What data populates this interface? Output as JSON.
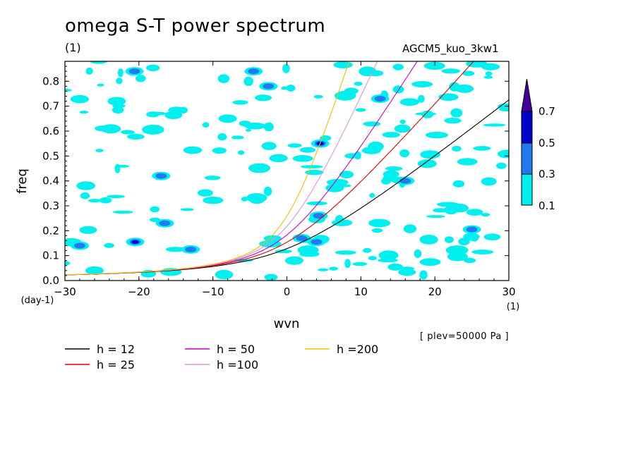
{
  "header": {
    "title": "omega S-T power spectrum",
    "units": "(1)",
    "experiment": "AGCM5_kuo_3kw1",
    "level": "[ plev=50000 Pa ]"
  },
  "chart_data": {
    "type": "heatmap",
    "title": "omega S-T power spectrum",
    "xlabel": "wvn",
    "ylabel": "freq",
    "x_unit": "(1)",
    "y_unit": "(day-1)",
    "xlim": [
      -30,
      30
    ],
    "ylim": [
      0,
      0.88
    ],
    "xticks": [
      -30,
      -20,
      -10,
      0,
      10,
      20,
      30
    ],
    "yticks": [
      0.0,
      0.1,
      0.2,
      0.3,
      0.4,
      0.5,
      0.6,
      0.7,
      0.8
    ],
    "colorbar": {
      "levels": [
        "0.1",
        "0.3",
        "0.5",
        "0.7"
      ],
      "colors": [
        "#00f0f0",
        "#1f7af0",
        "#0000cc",
        "#440099"
      ]
    },
    "dispersion_curves": [
      {
        "label": "h = 12",
        "h": 12,
        "color": "#000000"
      },
      {
        "label": "h = 25",
        "h": 25,
        "color": "#e00000"
      },
      {
        "label": "h = 50",
        "h": 50,
        "color": "#d000c0"
      },
      {
        "label": "h =100",
        "h": 100,
        "color": "#e090e0"
      },
      {
        "label": "h =200",
        "h": 200,
        "color": "#f0c000"
      }
    ],
    "contours": [
      {
        "x": 4.5,
        "y": 0.55,
        "level": 0.5
      },
      {
        "x": 4.3,
        "y": 0.26,
        "level": 0.3
      },
      {
        "x": -20.5,
        "y": 0.155,
        "level": 0.5
      },
      {
        "x": -13,
        "y": 0.125,
        "level": 0.3
      },
      {
        "x": 12.6,
        "y": 0.73,
        "level": 0.3
      },
      {
        "x": 25,
        "y": 0.205,
        "level": 0.3
      },
      {
        "x": -17,
        "y": 0.42,
        "level": 0.3
      },
      {
        "x": -16.5,
        "y": 0.23,
        "level": 0.3
      },
      {
        "x": 2,
        "y": 0.17,
        "level": 0.3
      },
      {
        "x": 4,
        "y": 0.155,
        "level": 0.3
      },
      {
        "x": -2.5,
        "y": 0.78,
        "level": 0.3
      },
      {
        "x": -20.6,
        "y": 0.84,
        "level": 0.3
      },
      {
        "x": -4.5,
        "y": 0.84,
        "level": 0.3
      },
      {
        "x": 16,
        "y": 0.4,
        "level": 0.3
      },
      {
        "x": -28,
        "y": 0.14,
        "level": 0.3
      },
      {
        "x": -23,
        "y": 0.72,
        "level": 0.1
      },
      {
        "x": -8,
        "y": 0.65,
        "level": 0.1
      },
      {
        "x": 24,
        "y": 0.77,
        "level": 0.1
      },
      {
        "x": 1,
        "y": 0.08,
        "level": 0.1
      },
      {
        "x": -26,
        "y": 0.04,
        "level": 0.1
      }
    ]
  },
  "legend": [
    {
      "label": "h = 12",
      "color": "#000000"
    },
    {
      "label": "h = 25",
      "color": "#e00000"
    },
    {
      "label": "h = 50",
      "color": "#d000c0"
    },
    {
      "label": "h =100",
      "color": "#e090e0"
    },
    {
      "label": "h =200",
      "color": "#f0c000"
    }
  ]
}
